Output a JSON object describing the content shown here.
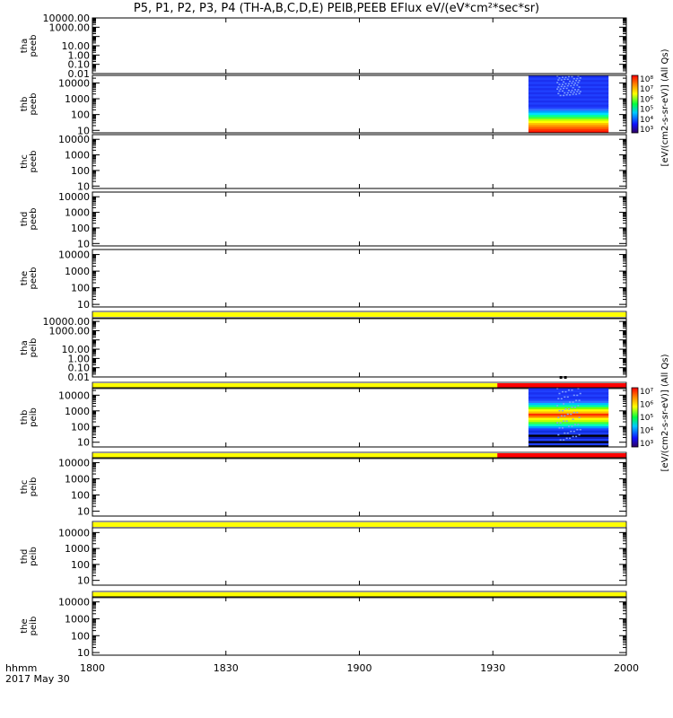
{
  "title": "P5, P1, P2, P3, P4 (TH-A,B,C,D,E) PEIB,PEEB EFlux eV/(eV*cm²*sec*sr)",
  "footer": {
    "time_format": "hhmm",
    "date": "2017 May 30"
  },
  "colorbars": [
    {
      "label": "[eV/(cm2-s-sr-eV)] (All Qs)",
      "tick_labels": [
        "10⁸",
        "10⁷",
        "10⁶",
        "10⁵",
        "10⁴",
        "10³"
      ]
    },
    {
      "label": "[eV/(cm2-s-sr-eV)] (All Qs)",
      "tick_labels": [
        "10⁷",
        "10⁶",
        "10⁵",
        "10⁴",
        "10³"
      ]
    }
  ],
  "colors": {
    "yellow_bar": "#ffff00",
    "red_bar": "#ff0000"
  },
  "chart_data": {
    "type": "heatmap",
    "x": {
      "ticks": [
        1800,
        1830,
        1900,
        1930,
        2000
      ],
      "tick_labels": [
        "1800",
        "1830",
        "1900",
        "1930",
        "2000"
      ],
      "range_minutes": [
        0,
        120
      ]
    },
    "panels": [
      {
        "ylabel": [
          "tha",
          "peeb"
        ],
        "scale": "log",
        "ylim": [
          0.01,
          10000
        ],
        "ticks": [
          10000,
          1000,
          10,
          1,
          0.1,
          0.01
        ],
        "tick_labels": [
          "10000.00",
          "1000.00",
          "10.00",
          "1.00",
          "0.10",
          "0.01"
        ],
        "extra_ticks": [
          100,
          10,
          1
        ],
        "extra_labels": [
          "100.00"
        ],
        "data": null
      },
      {
        "ylabel": [
          "thb",
          "peeb"
        ],
        "scale": "log",
        "ylim": [
          7,
          30000
        ],
        "ticks": [
          10000,
          1000,
          100,
          10
        ],
        "tick_labels": [
          "10000",
          "1000",
          "100",
          "10"
        ],
        "data": {
          "x_start": 1938,
          "x_end": 1956,
          "colorbar": 0
        }
      },
      {
        "ylabel": [
          "thc",
          "peeb"
        ],
        "scale": "log",
        "ylim": [
          7,
          20000
        ],
        "ticks": [
          10000,
          1000,
          100,
          10
        ],
        "tick_labels": [
          "10000",
          "1000",
          "100",
          "10"
        ],
        "data": null
      },
      {
        "ylabel": [
          "thd",
          "peeb"
        ],
        "scale": "log",
        "ylim": [
          7,
          20000
        ],
        "ticks": [
          10000,
          1000,
          100,
          10
        ],
        "tick_labels": [
          "10000",
          "1000",
          "100",
          "10"
        ],
        "data": null
      },
      {
        "ylabel": [
          "the",
          "peeb"
        ],
        "scale": "log",
        "ylim": [
          7,
          20000
        ],
        "ticks": [
          10000,
          1000,
          100,
          10
        ],
        "tick_labels": [
          "10000",
          "1000",
          "100",
          "10"
        ],
        "data": null,
        "flag_bar": {
          "segments": [
            {
              "x_start": 1800,
              "x_end": 2000,
              "color": "yellow"
            }
          ]
        }
      },
      {
        "ylabel": [
          "tha",
          "peib"
        ],
        "scale": "log",
        "ylim": [
          0.01,
          20000
        ],
        "ticks": [
          10000,
          1000,
          10,
          1,
          0.1,
          0.01
        ],
        "tick_labels": [
          "10000.00",
          "1000.00",
          "10.00",
          "1.00",
          "0.10",
          "0.01"
        ],
        "data": null,
        "flag_bar": {
          "segments": [
            {
              "x_start": 1800,
              "x_end": 1931,
              "color": "yellow"
            },
            {
              "x_start": 1931,
              "x_end": 2000,
              "color": "red"
            }
          ]
        }
      },
      {
        "ylabel": [
          "thb",
          "peib"
        ],
        "scale": "log",
        "ylim": [
          5,
          30000
        ],
        "ticks": [
          10000,
          1000,
          100,
          10
        ],
        "tick_labels": [
          "10000",
          "1000",
          "100",
          "10"
        ],
        "data": {
          "x_start": 1938,
          "x_end": 1956,
          "colorbar": 1
        },
        "flag_bar": {
          "segments": [
            {
              "x_start": 1800,
              "x_end": 1931,
              "color": "yellow"
            },
            {
              "x_start": 1931,
              "x_end": 2000,
              "color": "red"
            }
          ]
        }
      },
      {
        "ylabel": [
          "thc",
          "peib"
        ],
        "scale": "log",
        "ylim": [
          5,
          20000
        ],
        "ticks": [
          10000,
          1000,
          100,
          10
        ],
        "tick_labels": [
          "10000",
          "1000",
          "100",
          "10"
        ],
        "data": null,
        "flag_bar": {
          "segments": [
            {
              "x_start": 1800,
              "x_end": 2000,
              "color": "yellow"
            }
          ]
        }
      },
      {
        "ylabel": [
          "thd",
          "peib"
        ],
        "scale": "log",
        "ylim": [
          5,
          20000
        ],
        "ticks": [
          10000,
          1000,
          100,
          10
        ],
        "tick_labels": [
          "10000",
          "1000",
          "100",
          "10"
        ],
        "data": null,
        "flag_bar": {
          "segments": [
            {
              "x_start": 1800,
              "x_end": 2000,
              "color": "yellow"
            }
          ]
        }
      },
      {
        "ylabel": [
          "the",
          "peib"
        ],
        "scale": "log",
        "ylim": [
          7,
          20000
        ],
        "ticks": [
          10000,
          1000,
          100,
          10
        ],
        "tick_labels": [
          "10000",
          "1000",
          "100",
          "10"
        ],
        "data": null
      }
    ]
  }
}
